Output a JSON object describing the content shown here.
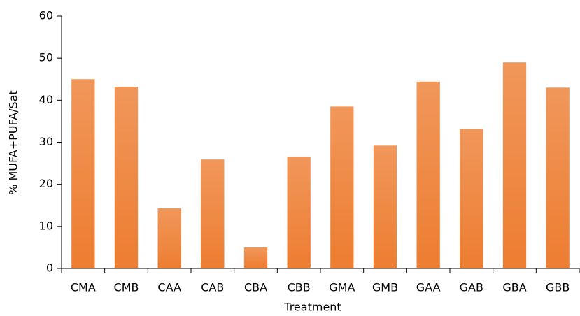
{
  "chart_data": {
    "type": "bar",
    "x_label": "Treatment",
    "y_label": "% MUFA+PUFA/Sat",
    "categories": [
      "CMA",
      "CMB",
      "CAA",
      "CAB",
      "CBA",
      "CBB",
      "GMA",
      "GMB",
      "GAA",
      "GAB",
      "GBA",
      "GBB"
    ],
    "values": [
      45.0,
      43.2,
      14.3,
      25.9,
      5.0,
      26.6,
      38.5,
      29.2,
      44.4,
      33.2,
      49.0,
      43.0
    ],
    "color": "#ed7d31",
    "ylim": [
      0,
      60
    ],
    "yticks": [
      0,
      10,
      20,
      30,
      40,
      50,
      60
    ],
    "grid": false
  }
}
